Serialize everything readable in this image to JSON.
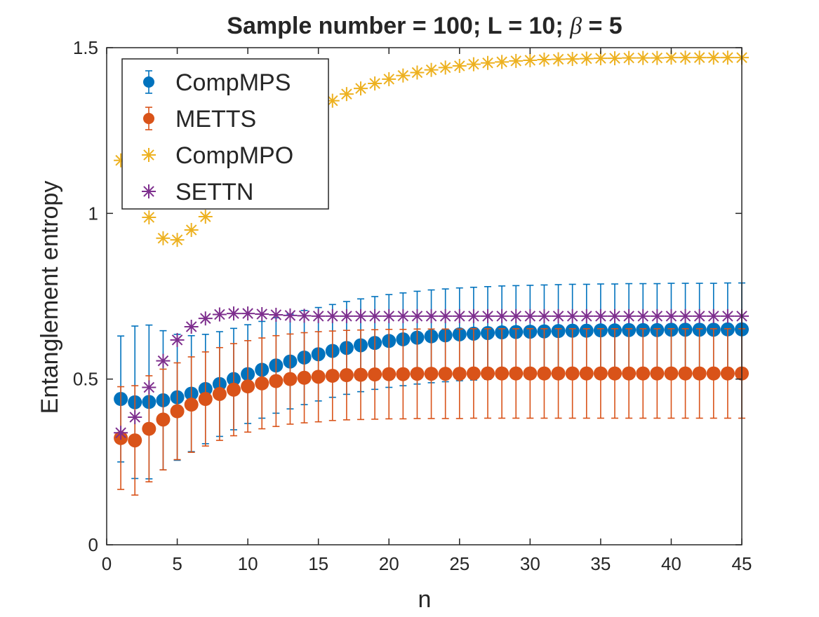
{
  "chart_data": {
    "type": "scatter",
    "title_prefix": "Sample number = 100; L = 10; ",
    "title_symbol": "β",
    "title_suffix": " = 5",
    "xlabel": "n",
    "ylabel": "Entanglement entropy",
    "xlim": [
      0,
      45
    ],
    "ylim": [
      0,
      1.5
    ],
    "xticks": [
      0,
      5,
      10,
      15,
      20,
      25,
      30,
      35,
      40,
      45
    ],
    "yticks": [
      0,
      0.5,
      1,
      1.5
    ],
    "xtick_labels": [
      "0",
      "5",
      "10",
      "15",
      "20",
      "25",
      "30",
      "35",
      "40",
      "45"
    ],
    "ytick_labels": [
      "0",
      "0.5",
      "1",
      "1.5"
    ],
    "grid": false,
    "legend_position": "top-left",
    "x": [
      1,
      2,
      3,
      4,
      5,
      6,
      7,
      8,
      9,
      10,
      11,
      12,
      13,
      14,
      15,
      16,
      17,
      18,
      19,
      20,
      21,
      22,
      23,
      24,
      25,
      26,
      27,
      28,
      29,
      30,
      31,
      32,
      33,
      34,
      35,
      36,
      37,
      38,
      39,
      40,
      41,
      42,
      43,
      44,
      45
    ],
    "series": [
      {
        "name": "CompMPS",
        "marker": "dot-errorbar",
        "color": "#0072BD",
        "values": [
          0.44,
          0.43,
          0.431,
          0.436,
          0.445,
          0.456,
          0.47,
          0.485,
          0.5,
          0.515,
          0.528,
          0.541,
          0.553,
          0.565,
          0.575,
          0.585,
          0.594,
          0.602,
          0.609,
          0.615,
          0.62,
          0.625,
          0.629,
          0.632,
          0.635,
          0.637,
          0.639,
          0.641,
          0.642,
          0.643,
          0.644,
          0.645,
          0.646,
          0.646,
          0.647,
          0.647,
          0.648,
          0.648,
          0.648,
          0.649,
          0.649,
          0.649,
          0.649,
          0.65,
          0.65
        ],
        "errors": [
          0.19,
          0.23,
          0.232,
          0.21,
          0.19,
          0.175,
          0.165,
          0.158,
          0.153,
          0.149,
          0.146,
          0.144,
          0.143,
          0.142,
          0.141,
          0.14,
          0.14,
          0.14,
          0.14,
          0.14,
          0.14,
          0.14,
          0.14,
          0.14,
          0.14,
          0.14,
          0.14,
          0.14,
          0.14,
          0.14,
          0.14,
          0.14,
          0.14,
          0.14,
          0.14,
          0.14,
          0.14,
          0.14,
          0.14,
          0.14,
          0.14,
          0.14,
          0.14,
          0.14,
          0.14
        ]
      },
      {
        "name": "METTS",
        "marker": "dot-errorbar",
        "color": "#D95319",
        "values": [
          0.322,
          0.315,
          0.35,
          0.378,
          0.403,
          0.423,
          0.44,
          0.455,
          0.468,
          0.478,
          0.487,
          0.494,
          0.5,
          0.504,
          0.507,
          0.51,
          0.512,
          0.513,
          0.514,
          0.515,
          0.515,
          0.516,
          0.516,
          0.516,
          0.516,
          0.517,
          0.517,
          0.517,
          0.517,
          0.517,
          0.517,
          0.517,
          0.517,
          0.517,
          0.517,
          0.517,
          0.517,
          0.517,
          0.517,
          0.517,
          0.517,
          0.517,
          0.517,
          0.517,
          0.517
        ],
        "errors": [
          0.155,
          0.165,
          0.16,
          0.152,
          0.146,
          0.144,
          0.142,
          0.14,
          0.139,
          0.138,
          0.137,
          0.137,
          0.136,
          0.136,
          0.136,
          0.135,
          0.135,
          0.135,
          0.135,
          0.135,
          0.135,
          0.135,
          0.135,
          0.135,
          0.135,
          0.135,
          0.135,
          0.135,
          0.135,
          0.135,
          0.135,
          0.135,
          0.135,
          0.135,
          0.135,
          0.135,
          0.135,
          0.135,
          0.135,
          0.135,
          0.135,
          0.135,
          0.135,
          0.135,
          0.135
        ]
      },
      {
        "name": "CompMPO",
        "marker": "asterisk",
        "color": "#EDB120",
        "values": [
          1.16,
          1.08,
          0.988,
          0.925,
          0.92,
          0.95,
          0.99,
          1.045,
          1.1,
          1.15,
          1.195,
          1.235,
          1.268,
          1.295,
          1.318,
          1.34,
          1.36,
          1.377,
          1.392,
          1.405,
          1.416,
          1.425,
          1.433,
          1.44,
          1.445,
          1.45,
          1.454,
          1.457,
          1.46,
          1.462,
          1.464,
          1.465,
          1.466,
          1.467,
          1.468,
          1.468,
          1.469,
          1.469,
          1.469,
          1.47,
          1.47,
          1.47,
          1.47,
          1.47,
          1.47
        ]
      },
      {
        "name": "SETTN",
        "marker": "asterisk",
        "color": "#7E2F8E",
        "values": [
          0.338,
          0.385,
          0.475,
          0.555,
          0.618,
          0.658,
          0.683,
          0.695,
          0.698,
          0.698,
          0.696,
          0.694,
          0.692,
          0.691,
          0.69,
          0.69,
          0.69,
          0.69,
          0.69,
          0.69,
          0.69,
          0.69,
          0.69,
          0.69,
          0.69,
          0.69,
          0.69,
          0.69,
          0.69,
          0.69,
          0.69,
          0.69,
          0.69,
          0.69,
          0.69,
          0.69,
          0.69,
          0.69,
          0.69,
          0.69,
          0.69,
          0.69,
          0.69,
          0.69,
          0.69
        ]
      }
    ]
  }
}
